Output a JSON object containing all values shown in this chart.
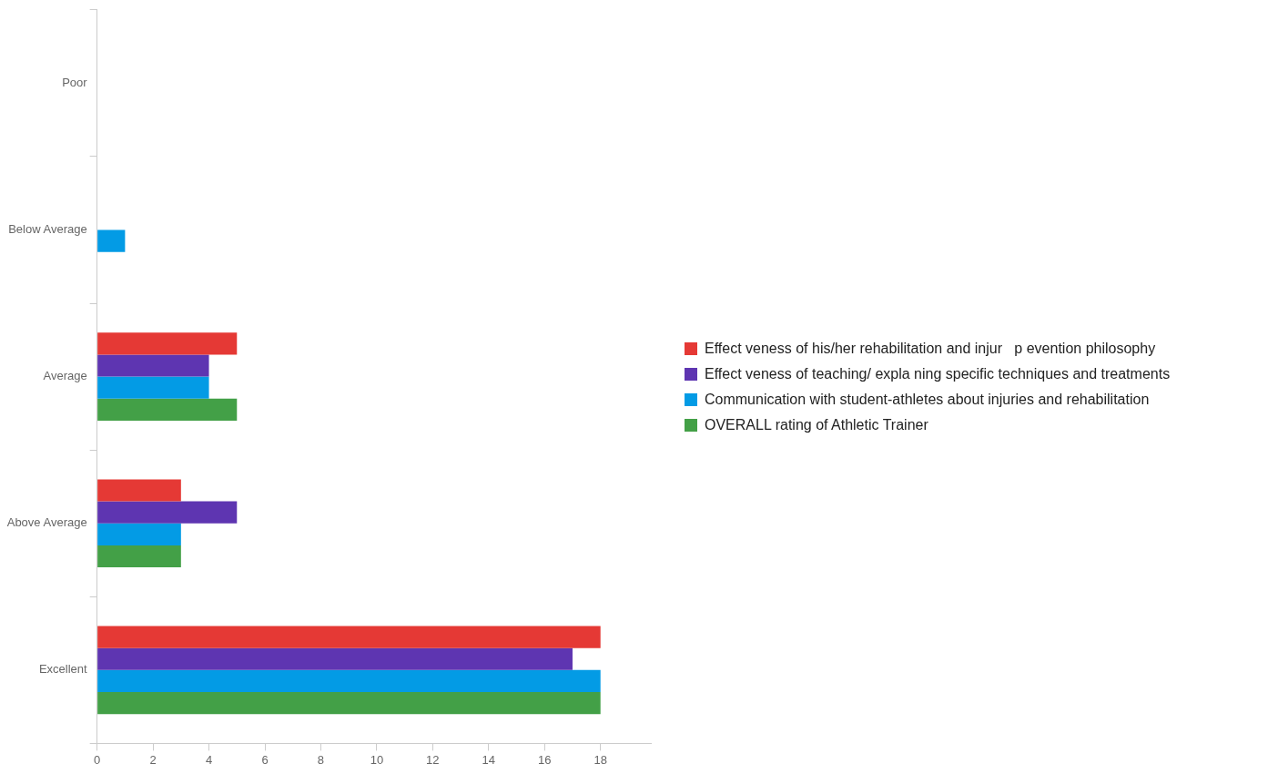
{
  "chart_data": {
    "type": "bar",
    "orientation": "horizontal",
    "categories": [
      "Poor",
      "Below Average",
      "Average",
      "Above Average",
      "Excellent"
    ],
    "series": [
      {
        "name": "Effect veness of his/her rehabilitation and injur   p evention philosophy",
        "color": "#e53935",
        "values": [
          0,
          0,
          5,
          3,
          18
        ]
      },
      {
        "name": "Effect veness of teaching/ expla ning specific techniques and treatments",
        "color": "#5e35b1",
        "values": [
          0,
          0,
          4,
          5,
          17
        ]
      },
      {
        "name": "Communication with student-athletes about injuries and rehabilitation",
        "color": "#039be5",
        "values": [
          0,
          1,
          4,
          3,
          18
        ]
      },
      {
        "name": "OVERALL rating of Athletic Trainer",
        "color": "#43a047",
        "values": [
          0,
          0,
          5,
          3,
          18
        ]
      }
    ],
    "xlim": [
      0,
      19.8
    ],
    "xticks": [
      0,
      2,
      4,
      6,
      8,
      10,
      12,
      14,
      16,
      18
    ],
    "legend": "right"
  }
}
